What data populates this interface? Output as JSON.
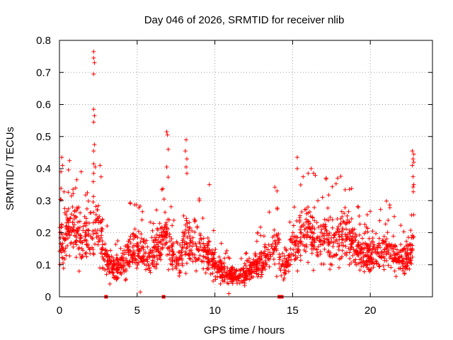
{
  "chart_data": {
    "type": "scatter",
    "title": "Day 046 of 2026, SRMTID for receiver nlib",
    "xlabel": "GPS time / hours",
    "ylabel": "SRMTID / TECUs",
    "xlim": [
      0,
      24
    ],
    "ylim": [
      0,
      0.8
    ],
    "xticks": [
      0,
      5,
      10,
      15,
      20
    ],
    "yticks": [
      0,
      0.1,
      0.2,
      0.3,
      0.4,
      0.5,
      0.6,
      0.7,
      0.8
    ],
    "xtick_labels": [
      "0",
      "5",
      "10",
      "15",
      "20"
    ],
    "ytick_labels": [
      "0",
      "0.1",
      "0.2",
      "0.3",
      "0.4",
      "0.5",
      "0.6",
      "0.7",
      "0.8"
    ],
    "grid": true,
    "marker": "+",
    "series_color": "#ff0000",
    "envelope": {
      "description": "typical SRMTID level by hour (points scattered around it)",
      "x": [
        0,
        0.3,
        0.7,
        1.0,
        1.5,
        2.0,
        2.2,
        2.6,
        3.0,
        3.3,
        3.6,
        4.0,
        4.5,
        5.0,
        5.5,
        6.0,
        6.5,
        6.9,
        7.3,
        7.8,
        8.2,
        8.6,
        9.0,
        9.5,
        10.0,
        10.5,
        11.0,
        11.5,
        12.0,
        12.5,
        13.0,
        13.5,
        14.0,
        14.3,
        14.7,
        15.0,
        15.5,
        16.0,
        16.5,
        17.0,
        17.5,
        18.0,
        18.5,
        19.0,
        19.5,
        20.0,
        20.5,
        21.0,
        21.5,
        22.0,
        22.5,
        22.8
      ],
      "y": [
        0.18,
        0.16,
        0.24,
        0.22,
        0.18,
        0.2,
        0.24,
        0.2,
        0.12,
        0.09,
        0.09,
        0.1,
        0.14,
        0.15,
        0.13,
        0.14,
        0.17,
        0.2,
        0.12,
        0.11,
        0.2,
        0.15,
        0.15,
        0.14,
        0.1,
        0.08,
        0.07,
        0.06,
        0.07,
        0.09,
        0.11,
        0.13,
        0.18,
        0.08,
        0.12,
        0.16,
        0.18,
        0.2,
        0.18,
        0.19,
        0.17,
        0.2,
        0.18,
        0.15,
        0.14,
        0.13,
        0.14,
        0.15,
        0.13,
        0.11,
        0.12,
        0.18
      ]
    },
    "notable_points": [
      {
        "x": 2.2,
        "y": 0.765
      },
      {
        "x": 2.2,
        "y": 0.745
      },
      {
        "x": 2.25,
        "y": 0.73
      },
      {
        "x": 2.2,
        "y": 0.695
      },
      {
        "x": 2.2,
        "y": 0.585
      },
      {
        "x": 2.25,
        "y": 0.565
      },
      {
        "x": 2.2,
        "y": 0.545
      },
      {
        "x": 2.25,
        "y": 0.475
      },
      {
        "x": 2.2,
        "y": 0.455
      },
      {
        "x": 2.2,
        "y": 0.415
      },
      {
        "x": 2.3,
        "y": 0.405
      },
      {
        "x": 2.2,
        "y": 0.385
      },
      {
        "x": 6.9,
        "y": 0.515
      },
      {
        "x": 6.95,
        "y": 0.505
      },
      {
        "x": 7.0,
        "y": 0.46
      },
      {
        "x": 6.9,
        "y": 0.405
      },
      {
        "x": 8.15,
        "y": 0.49
      },
      {
        "x": 8.1,
        "y": 0.455
      },
      {
        "x": 8.2,
        "y": 0.43
      },
      {
        "x": 8.15,
        "y": 0.405
      },
      {
        "x": 8.2,
        "y": 0.385
      },
      {
        "x": 0.15,
        "y": 0.435
      },
      {
        "x": 0.2,
        "y": 0.41
      },
      {
        "x": 0.1,
        "y": 0.39
      },
      {
        "x": 1.4,
        "y": 0.39
      },
      {
        "x": 0.65,
        "y": 0.425
      },
      {
        "x": 15.3,
        "y": 0.435
      },
      {
        "x": 15.3,
        "y": 0.4
      },
      {
        "x": 16.2,
        "y": 0.4
      },
      {
        "x": 16.0,
        "y": 0.385
      },
      {
        "x": 17.9,
        "y": 0.37
      },
      {
        "x": 22.7,
        "y": 0.455
      },
      {
        "x": 22.8,
        "y": 0.445
      },
      {
        "x": 22.75,
        "y": 0.43
      },
      {
        "x": 22.8,
        "y": 0.42
      },
      {
        "x": 22.7,
        "y": 0.41
      },
      {
        "x": 22.75,
        "y": 0.375
      },
      {
        "x": 22.8,
        "y": 0.35
      },
      {
        "x": 9.65,
        "y": 0.35
      },
      {
        "x": 9.0,
        "y": 0.3
      },
      {
        "x": 10.9,
        "y": 0.01
      },
      {
        "x": 5.2,
        "y": 0.015
      },
      {
        "x": 2.6,
        "y": 0.09
      },
      {
        "x": 14.0,
        "y": 0.33
      }
    ],
    "zero_markers": [
      {
        "x": 3.0,
        "y": 0.0
      },
      {
        "x": 6.7,
        "y": 0.0
      },
      {
        "x": 14.15,
        "y": 0.0
      },
      {
        "x": 14.3,
        "y": 0.0
      }
    ],
    "generated_point_count": 1900
  }
}
